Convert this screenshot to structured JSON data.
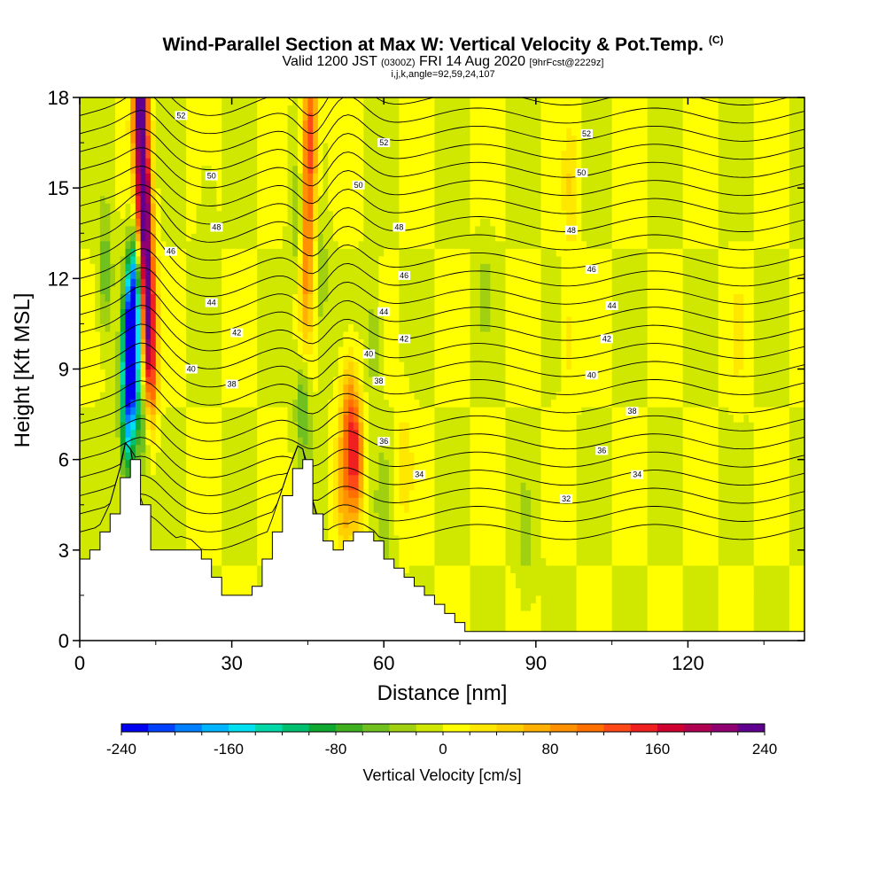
{
  "chart_data": {
    "type": "heatmap",
    "title": "Wind-Parallel Section at Max W: Vertical Velocity & Pot.Temp.",
    "title_tag": "(C)",
    "subtitle_main": "Valid 1200 JST",
    "subtitle_utc": "(0300Z)",
    "subtitle_date": "FRI 14 Aug 2020",
    "subtitle_fcst": "[9hrFcst@2229z]",
    "subtitle2": "i,j,k,angle=92,59,24,107",
    "xlabel": "Distance [nm]",
    "ylabel": "Height [Kft MSL]",
    "xlim": [
      0,
      143
    ],
    "ylim": [
      0,
      18
    ],
    "x_ticks": [
      "0",
      "30",
      "60",
      "90",
      "120"
    ],
    "x_tick_values": [
      0,
      30,
      60,
      90,
      120
    ],
    "y_ticks": [
      "0",
      "3",
      "6",
      "9",
      "12",
      "15",
      "18"
    ],
    "y_tick_values": [
      0,
      3,
      6,
      9,
      12,
      15,
      18
    ],
    "colorbar": {
      "label": "Vertical Velocity [cm/s]",
      "min": -240,
      "max": 240,
      "step": 20,
      "tick_labels": [
        "-240",
        "-160",
        "-80",
        "0",
        "80",
        "160",
        "240"
      ],
      "tick_values": [
        -240,
        -160,
        -80,
        0,
        80,
        160,
        240
      ],
      "colors": [
        "#0000f0",
        "#0040ff",
        "#0080ff",
        "#00b4ff",
        "#00e0f0",
        "#00d8a8",
        "#00c070",
        "#10a830",
        "#40b020",
        "#70c020",
        "#a0d010",
        "#d0e800",
        "#ffff00",
        "#ffe800",
        "#ffd000",
        "#ffb000",
        "#ff9000",
        "#ff7000",
        "#ff4818",
        "#f02020",
        "#d00030",
        "#b00050",
        "#900070",
        "#600090"
      ]
    },
    "terrain_kft": [
      [
        0,
        2.8
      ],
      [
        2,
        3.1
      ],
      [
        4,
        3.5
      ],
      [
        6,
        4.2
      ],
      [
        8,
        5.4
      ],
      [
        9,
        6.2
      ],
      [
        10,
        6.0
      ],
      [
        11,
        5.1
      ],
      [
        12,
        4.4
      ],
      [
        13,
        3.6
      ],
      [
        14,
        3.1
      ],
      [
        16,
        3.0
      ],
      [
        18,
        2.9
      ],
      [
        20,
        3.1
      ],
      [
        22,
        3.0
      ],
      [
        25,
        2.5
      ],
      [
        27,
        1.8
      ],
      [
        29,
        1.4
      ],
      [
        31,
        1.3
      ],
      [
        33,
        1.5
      ],
      [
        35,
        2.3
      ],
      [
        37,
        3.2
      ],
      [
        39,
        4.2
      ],
      [
        41,
        5.2
      ],
      [
        43,
        6.1
      ],
      [
        44,
        6.0
      ],
      [
        45,
        5.2
      ],
      [
        46,
        4.3
      ],
      [
        47,
        3.5
      ],
      [
        49,
        3.2
      ],
      [
        50,
        3.0
      ],
      [
        52,
        3.3
      ],
      [
        54,
        3.6
      ],
      [
        56,
        3.5
      ],
      [
        58,
        3.3
      ],
      [
        59,
        2.9
      ],
      [
        60,
        2.6
      ],
      [
        62,
        2.3
      ],
      [
        64,
        2.1
      ],
      [
        66,
        1.9
      ],
      [
        68,
        1.6
      ],
      [
        70,
        1.2
      ],
      [
        72,
        0.8
      ],
      [
        74,
        0.5
      ],
      [
        76,
        0.3
      ],
      [
        80,
        0.3
      ],
      [
        143,
        0.3
      ]
    ],
    "w_features": [
      {
        "x": 12.0,
        "z": 17.9,
        "w": 240
      },
      {
        "x": 12.6,
        "z": 14.5,
        "w": 240
      },
      {
        "x": 13.3,
        "z": 11.5,
        "w": 200
      },
      {
        "x": 13.8,
        "z": 9.0,
        "w": 150
      },
      {
        "x": 10.0,
        "z": 9.5,
        "w": -240
      },
      {
        "x": 10.8,
        "z": 11.5,
        "w": -170
      },
      {
        "x": 9.5,
        "z": 7.0,
        "w": -120
      },
      {
        "x": 12.4,
        "z": 7.5,
        "w": -80
      },
      {
        "x": 5.0,
        "z": 12.0,
        "w": -60
      },
      {
        "x": 45.5,
        "z": 17.0,
        "w": 130
      },
      {
        "x": 45.0,
        "z": 14.0,
        "w": 100
      },
      {
        "x": 44.5,
        "z": 11.0,
        "w": 60
      },
      {
        "x": 43.0,
        "z": 14.0,
        "w": -50
      },
      {
        "x": 47.5,
        "z": 12.0,
        "w": -40
      },
      {
        "x": 44.0,
        "z": 8.0,
        "w": -60
      },
      {
        "x": 54.5,
        "z": 6.0,
        "w": 130
      },
      {
        "x": 53.0,
        "z": 7.5,
        "w": 80
      },
      {
        "x": 52.0,
        "z": 5.0,
        "w": 60
      },
      {
        "x": 58.0,
        "z": 10.0,
        "w": -40
      },
      {
        "x": 60.0,
        "z": 4.0,
        "w": -30
      },
      {
        "x": 64.0,
        "z": 6.0,
        "w": 30
      },
      {
        "x": 97.0,
        "z": 15.0,
        "w": 40
      },
      {
        "x": 96.5,
        "z": 10.0,
        "w": 30
      },
      {
        "x": 88.0,
        "z": 3.0,
        "w": -25
      },
      {
        "x": 130.0,
        "z": 10.0,
        "w": 20
      },
      {
        "x": 25.0,
        "z": 14.0,
        "w": -25
      },
      {
        "x": 80.0,
        "z": 12.0,
        "w": -20
      }
    ],
    "theta_contour_labels": [
      {
        "text": "52",
        "x": 20,
        "z": 17.4
      },
      {
        "text": "50",
        "x": 26,
        "z": 15.4
      },
      {
        "text": "48",
        "x": 27,
        "z": 13.7
      },
      {
        "text": "46",
        "x": 18,
        "z": 12.9
      },
      {
        "text": "44",
        "x": 26,
        "z": 11.2
      },
      {
        "text": "42",
        "x": 31,
        "z": 10.2
      },
      {
        "text": "40",
        "x": 22,
        "z": 9.0
      },
      {
        "text": "38",
        "x": 30,
        "z": 8.5
      },
      {
        "text": "52",
        "x": 60,
        "z": 16.5
      },
      {
        "text": "50",
        "x": 55,
        "z": 15.1
      },
      {
        "text": "48",
        "x": 63,
        "z": 13.7
      },
      {
        "text": "46",
        "x": 64,
        "z": 12.1
      },
      {
        "text": "44",
        "x": 60,
        "z": 10.9
      },
      {
        "text": "42",
        "x": 64,
        "z": 10.0
      },
      {
        "text": "40",
        "x": 57,
        "z": 9.5
      },
      {
        "text": "38",
        "x": 59,
        "z": 8.6
      },
      {
        "text": "36",
        "x": 60,
        "z": 6.6
      },
      {
        "text": "34",
        "x": 67,
        "z": 5.5
      },
      {
        "text": "52",
        "x": 100,
        "z": 16.8
      },
      {
        "text": "50",
        "x": 99,
        "z": 15.5
      },
      {
        "text": "48",
        "x": 97,
        "z": 13.6
      },
      {
        "text": "46",
        "x": 101,
        "z": 12.3
      },
      {
        "text": "44",
        "x": 105,
        "z": 11.1
      },
      {
        "text": "42",
        "x": 104,
        "z": 10.0
      },
      {
        "text": "40",
        "x": 101,
        "z": 8.8
      },
      {
        "text": "38",
        "x": 109,
        "z": 7.6
      },
      {
        "text": "36",
        "x": 103,
        "z": 6.3
      },
      {
        "text": "34",
        "x": 110,
        "z": 5.5
      },
      {
        "text": "32",
        "x": 96,
        "z": 4.7
      }
    ]
  }
}
